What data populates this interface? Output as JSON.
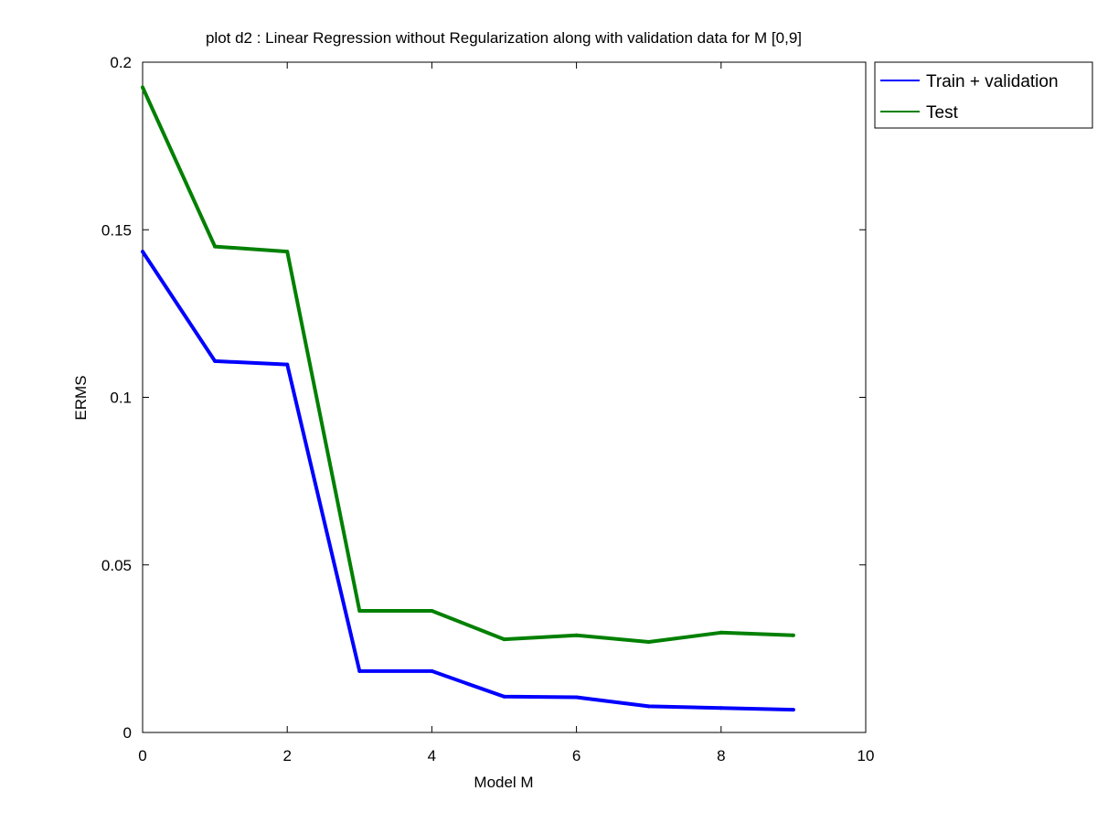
{
  "chart_data": {
    "type": "line",
    "title": "plot d2 : Linear Regression without Regularization along with validation data for M [0,9]",
    "xlabel": "Model M",
    "ylabel": "ERMS",
    "xlim": [
      0,
      10
    ],
    "ylim": [
      0,
      0.2
    ],
    "xticks": [
      0,
      2,
      4,
      6,
      8,
      10
    ],
    "yticks": [
      0,
      0.05,
      0.1,
      0.15,
      0.2
    ],
    "xtick_labels": [
      "0",
      "2",
      "4",
      "6",
      "8",
      "10"
    ],
    "ytick_labels": [
      "0",
      "0.05",
      "0.1",
      "0.15",
      "0.2"
    ],
    "grid": false,
    "legend_position": "outside-top-right",
    "x": [
      0,
      1,
      2,
      3,
      4,
      5,
      6,
      7,
      8,
      9
    ],
    "series": [
      {
        "name": "Train + validation",
        "color": "#0000ff",
        "values": [
          0.1435,
          0.1108,
          0.1098,
          0.0183,
          0.0183,
          0.0107,
          0.0105,
          0.0078,
          0.0073,
          0.0068
        ]
      },
      {
        "name": "Test",
        "color": "#008000",
        "values": [
          0.1925,
          0.145,
          0.1435,
          0.0363,
          0.0363,
          0.0278,
          0.029,
          0.027,
          0.0298,
          0.029
        ]
      }
    ]
  }
}
